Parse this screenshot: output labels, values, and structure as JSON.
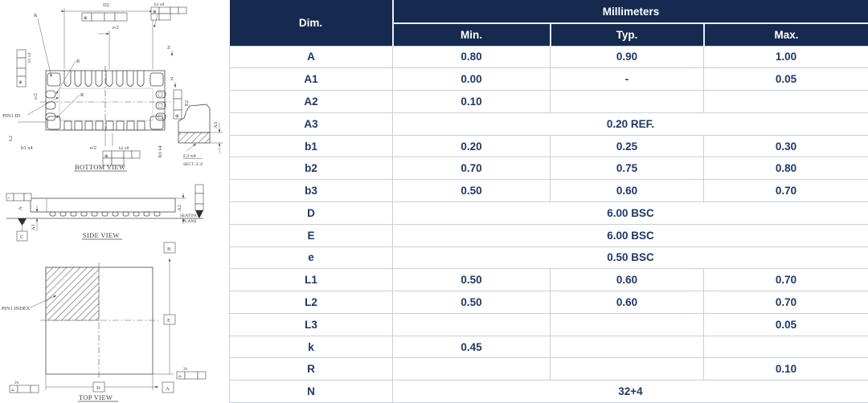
{
  "drawing": {
    "labels": {
      "d2": "D2",
      "e_half": "e/2",
      "b1x8": "b1 x8",
      "b1x4": "b1 x4",
      "b2x8": "b2 x8",
      "b3x4": "b3 x4",
      "r": "R",
      "z": "Z",
      "e2": "E2",
      "pin1_id": "PIN1 ID",
      "l2": "L2",
      "a3": "A3",
      "l3x4": "L3 x4",
      "sect_title": "SECT. Z-Z",
      "bottom_title": "BOTTOM VIEW",
      "a": "A",
      "a1": "A1",
      "a2": "A2",
      "seating_line1": "SEATING",
      "seating_line2": "PLANE",
      "datum_a": "A",
      "datum_b": "B",
      "datum_c": "C",
      "side_title": "SIDE VIEW",
      "pin1_index": "PIN1 INDEX",
      "e_dim": "E",
      "d_dim": "D",
      "two_x": "2x",
      "top_title": "TOP VIEW",
      "fcf_position": "⊕",
      "fcf_profile": "⌓",
      "fcf_parallel": "//"
    }
  },
  "table": {
    "dim_header": "Dim.",
    "unit_header": "Millimeters",
    "columns": [
      "Min.",
      "Typ.",
      "Max."
    ],
    "rows": [
      {
        "dim": "A",
        "cells": [
          "0.80",
          "0.90",
          "1.00"
        ]
      },
      {
        "dim": "A1",
        "cells": [
          "0.00",
          "-",
          "0.05"
        ]
      },
      {
        "dim": "A2",
        "cells": [
          "0.10",
          "",
          ""
        ]
      },
      {
        "dim": "A3",
        "span": "0.20 REF."
      },
      {
        "dim": "b1",
        "cells": [
          "0.20",
          "0.25",
          "0.30"
        ]
      },
      {
        "dim": "b2",
        "cells": [
          "0.70",
          "0.75",
          "0.80"
        ]
      },
      {
        "dim": "b3",
        "cells": [
          "0.50",
          "0.60",
          "0.70"
        ]
      },
      {
        "dim": "D",
        "span": "6.00 BSC"
      },
      {
        "dim": "E",
        "span": "6.00 BSC"
      },
      {
        "dim": "e",
        "span": "0.50 BSC"
      },
      {
        "dim": "L1",
        "cells": [
          "0.50",
          "0.60",
          "0.70"
        ]
      },
      {
        "dim": "L2",
        "cells": [
          "0.50",
          "0.60",
          "0.70"
        ]
      },
      {
        "dim": "L3",
        "cells": [
          "",
          "",
          "0.05"
        ]
      },
      {
        "dim": "k",
        "cells": [
          "0.45",
          "",
          ""
        ]
      },
      {
        "dim": "R",
        "cells": [
          "",
          "",
          "0.10"
        ]
      },
      {
        "dim": "N",
        "span": "32+4"
      }
    ]
  },
  "colors": {
    "header_bg": "#16294F",
    "body_text": "#1F3864",
    "grid_border": "#C8D0DD",
    "header_divider": "#E7EDF5"
  }
}
